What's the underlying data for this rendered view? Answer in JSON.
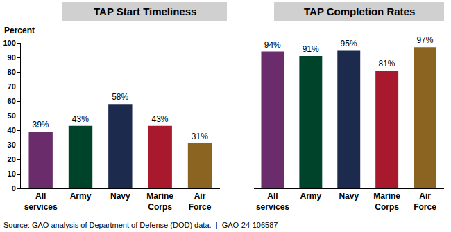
{
  "chart_data": [
    {
      "type": "bar",
      "title": "TAP Start Timeliness",
      "ylabel": "Percent",
      "categories": [
        "All services",
        "Army",
        "Navy",
        "Marine Corps",
        "Air Force"
      ],
      "values": [
        39,
        43,
        58,
        43,
        31
      ],
      "value_labels": [
        "39%",
        "43%",
        "58%",
        "43%",
        "31%"
      ],
      "colors": [
        "#6b2c6b",
        "#00432b",
        "#1c2a4d",
        "#a8192e",
        "#8c6421"
      ],
      "ylim": [
        0,
        100
      ],
      "yticks": [
        0,
        10,
        20,
        30,
        40,
        50,
        60,
        70,
        80,
        90,
        100
      ],
      "grid": false,
      "data_labels": true
    },
    {
      "type": "bar",
      "title": "TAP Completion Rates",
      "categories": [
        "All services",
        "Army",
        "Navy",
        "Marine Corps",
        "Air Force"
      ],
      "values": [
        94,
        91,
        95,
        81,
        97
      ],
      "value_labels": [
        "94%",
        "91%",
        "95%",
        "81%",
        "97%"
      ],
      "colors": [
        "#6b2c6b",
        "#00432b",
        "#1c2a4d",
        "#a8192e",
        "#8c6421"
      ],
      "ylim": [
        0,
        100
      ],
      "grid": false,
      "data_labels": true,
      "tick_labels": "x"
    }
  ],
  "source": "Source: GAO analysis of Department of Defense (DOD) data.  |  GAO-24-106587"
}
